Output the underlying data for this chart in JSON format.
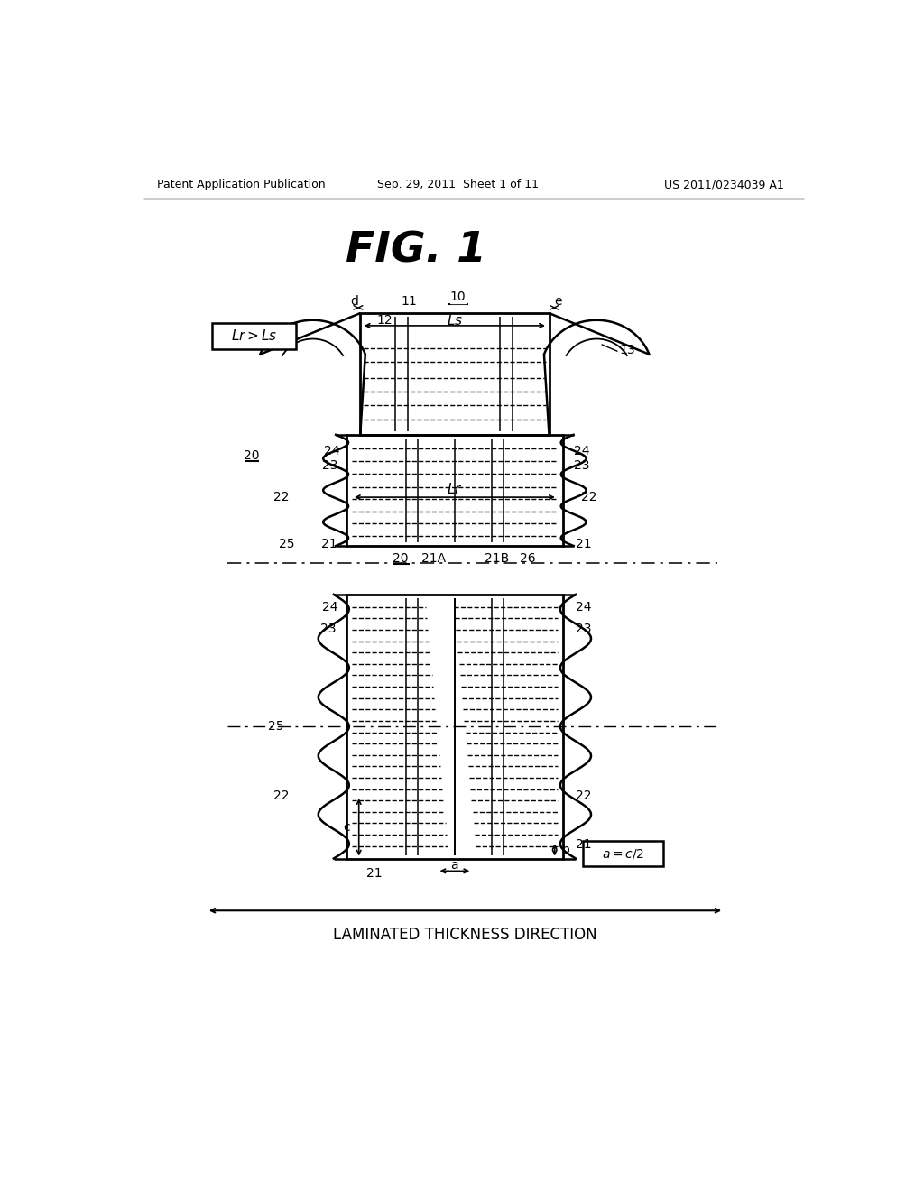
{
  "bg_color": "#ffffff",
  "header_left": "Patent Application Publication",
  "header_mid": "Sep. 29, 2011  Sheet 1 of 11",
  "header_right": "US 2011/0234039 A1",
  "title": "FIG. 1",
  "bottom_label": "LAMINATED THICKNESS DIRECTION"
}
